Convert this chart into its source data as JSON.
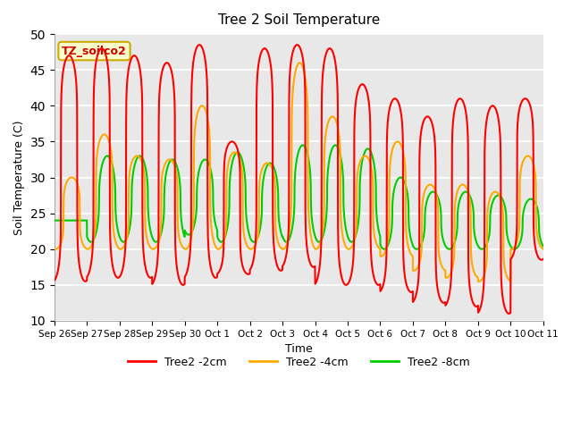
{
  "title": "Tree 2 Soil Temperature",
  "xlabel": "Time",
  "ylabel": "Soil Temperature (C)",
  "ylim": [
    10,
    50
  ],
  "xlim": [
    0,
    15
  ],
  "background_color": "#e8e8e8",
  "annotation_text": "TZ_soilco2",
  "annotation_bg": "#ffffcc",
  "annotation_border": "#ccaa00",
  "x_tick_labels": [
    "Sep 26",
    "Sep 27",
    "Sep 28",
    "Sep 29",
    "Sep 30",
    "Oct 1",
    "Oct 2",
    "Oct 3",
    "Oct 4",
    "Oct 5",
    "Oct 6",
    "Oct 7",
    "Oct 8",
    "Oct 9",
    "Oct 10",
    "Oct 11"
  ],
  "line_2cm_color": "#ff0000",
  "line_4cm_color": "#ffaa00",
  "line_8cm_color": "#00cc00",
  "line_width": 1.5,
  "legend_labels": [
    "Tree2 -2cm",
    "Tree2 -4cm",
    "Tree2 -8cm"
  ],
  "legend_colors": [
    "#ff0000",
    "#ffaa00",
    "#00cc00"
  ],
  "grid_color": "white",
  "yticks": [
    10,
    15,
    20,
    25,
    30,
    35,
    40,
    45,
    50
  ],
  "peaks_2cm": [
    47,
    48,
    47,
    46,
    48.5,
    35,
    48,
    48.5,
    48,
    43,
    41,
    38.5,
    41,
    40,
    41
  ],
  "troughs_2cm": [
    15.5,
    16,
    16,
    15,
    16,
    16.5,
    17,
    17.5,
    15,
    15,
    14,
    12.5,
    12,
    11,
    18.5
  ],
  "peaks_4cm": [
    30,
    36,
    33,
    32.5,
    40,
    33.5,
    32,
    46,
    38.5,
    33,
    35,
    29,
    29,
    28,
    33
  ],
  "troughs_4cm": [
    20,
    20,
    20,
    20,
    20,
    20,
    20,
    20,
    20,
    20,
    19,
    17,
    16,
    15.5,
    20
  ],
  "peaks_8cm": [
    24,
    33,
    33,
    32.5,
    32.5,
    33.5,
    32,
    34.5,
    34.5,
    34,
    30,
    28,
    28,
    27.5,
    27
  ],
  "troughs_8cm": [
    24,
    21,
    21,
    21,
    22,
    21,
    21,
    21,
    21,
    21,
    20,
    20,
    20,
    20,
    20
  ]
}
